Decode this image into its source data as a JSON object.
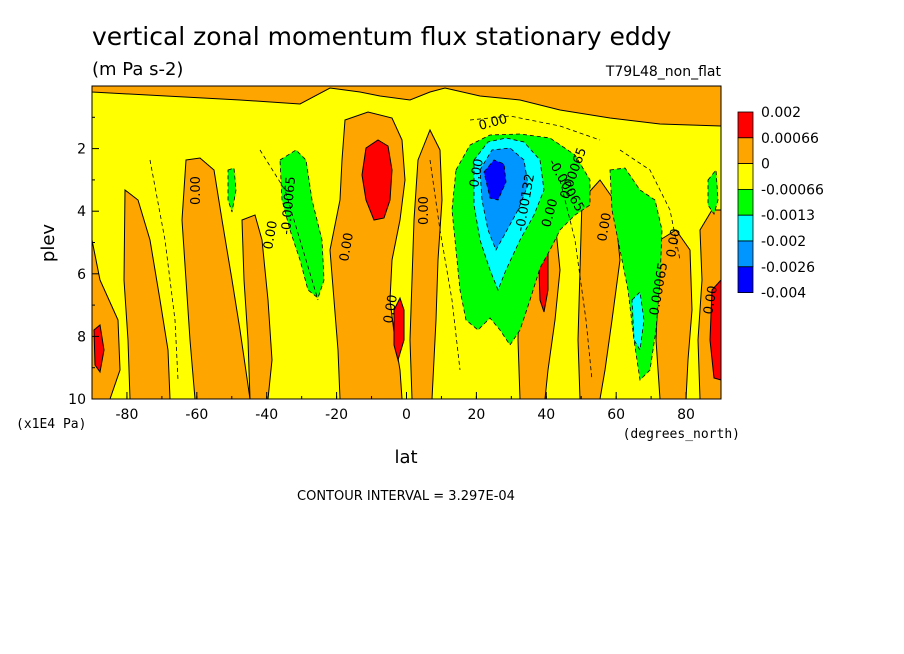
{
  "chart_data": {
    "type": "heatmap",
    "subtype": "filled-contour",
    "title": "vertical zonal momentum flux stationary eddy",
    "units": "(m Pa s-2)",
    "run_label": "T79L48_non_flat",
    "xlabel": "lat",
    "x_units": "(degrees_north)",
    "ylabel": "plev",
    "y_units": "(x1E4 Pa)",
    "xlim": [
      -90,
      90
    ],
    "ylim": [
      0,
      10
    ],
    "y_inverted": true,
    "x_ticks": [
      -80,
      -60,
      -40,
      -20,
      0,
      20,
      40,
      60,
      80
    ],
    "y_ticks": [
      2,
      4,
      6,
      8,
      10
    ],
    "contour_interval_text": "CONTOUR INTERVAL = 3.297E-04",
    "contour_labels": [
      "0.00",
      "0.00",
      "0.00",
      "0.00",
      "0.00",
      "0.00",
      "0.00",
      "0.00",
      "0.00",
      "0.00",
      "0.00",
      "-0.00065",
      "-0.00065",
      "0.00065",
      "0.00065",
      "-0.00132"
    ],
    "colorbar": {
      "labels": [
        "0.002",
        "0.00066",
        "0",
        "-0.00066",
        "-0.0013",
        "-0.002",
        "-0.0026",
        "-0.004"
      ],
      "colors": [
        "#ff0000",
        "#ffa500",
        "#ffff00",
        "#00ff00",
        "#00ffff",
        "#0096ff",
        "#0000ff"
      ]
    },
    "features": [
      {
        "lat": -10,
        "plev": 3,
        "sign": "positive",
        "level": 0.002
      },
      {
        "lat": -2,
        "plev": 8.2,
        "sign": "positive",
        "level": 0.002
      },
      {
        "lat": 88,
        "plev": 8,
        "sign": "positive",
        "level": 0.002
      },
      {
        "lat": -88,
        "plev": 8.6,
        "sign": "positive",
        "level": 0.002
      },
      {
        "lat": 40,
        "plev": 6.5,
        "sign": "positive",
        "level": 0.002
      },
      {
        "lat": 22,
        "plev": 3,
        "sign": "negative",
        "level": -0.004
      },
      {
        "lat": 26,
        "plev": 3.5,
        "sign": "negative",
        "level": -0.0026
      },
      {
        "lat": 28,
        "plev": 4,
        "sign": "negative",
        "level": -0.002
      },
      {
        "lat": -32,
        "plev": 4,
        "sign": "negative",
        "level": -0.0013
      },
      {
        "lat": 66,
        "plev": 5,
        "sign": "negative",
        "level": -0.0013
      }
    ]
  }
}
